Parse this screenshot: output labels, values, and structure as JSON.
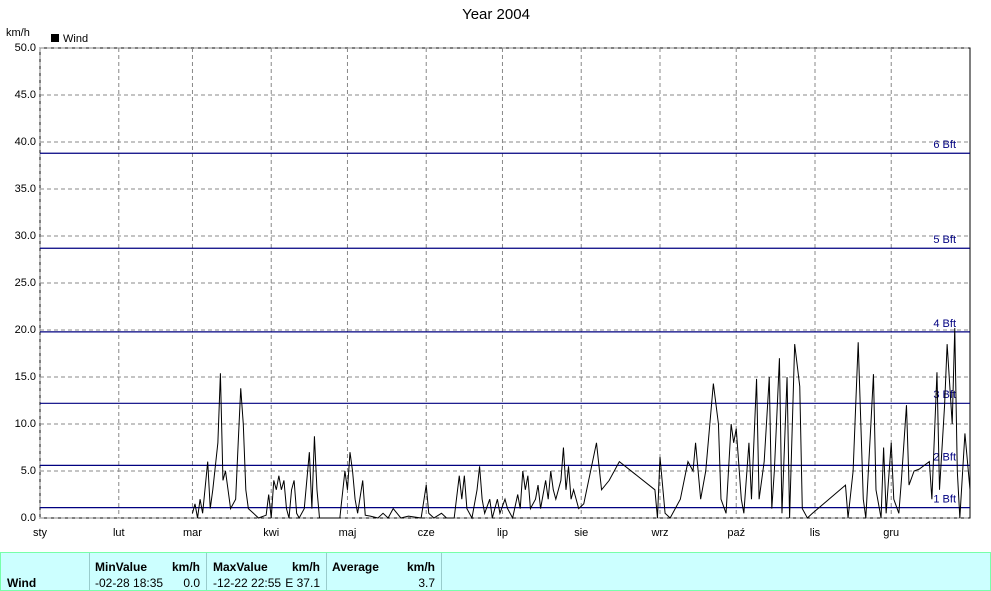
{
  "chart_data": {
    "type": "line",
    "title": "Year 2004",
    "y_label": "km/h",
    "xlim": [
      0,
      366
    ],
    "xticks": [
      {
        "value": 0,
        "label": "sty"
      },
      {
        "value": 31,
        "label": "lut"
      },
      {
        "value": 60,
        "label": "mar"
      },
      {
        "value": 91,
        "label": "kwi"
      },
      {
        "value": 121,
        "label": "maj"
      },
      {
        "value": 152,
        "label": "cze"
      },
      {
        "value": 182,
        "label": "lip"
      },
      {
        "value": 213,
        "label": "sie"
      },
      {
        "value": 244,
        "label": "wrz"
      },
      {
        "value": 274,
        "label": "paź"
      },
      {
        "value": 305,
        "label": "lis"
      },
      {
        "value": 335,
        "label": "gru"
      }
    ],
    "ylim": [
      0,
      50
    ],
    "yticks": [
      {
        "value": 0,
        "label": "0.0"
      },
      {
        "value": 5,
        "label": "5.0"
      },
      {
        "value": 10,
        "label": "10.0"
      },
      {
        "value": 15,
        "label": "15.0"
      },
      {
        "value": 20,
        "label": "20.0"
      },
      {
        "value": 25,
        "label": "25.0"
      },
      {
        "value": 30,
        "label": "30.0"
      },
      {
        "value": 35,
        "label": "35.0"
      },
      {
        "value": 40,
        "label": "40.0"
      },
      {
        "value": 45,
        "label": "45.0"
      },
      {
        "value": 50,
        "label": "50.0"
      }
    ],
    "grid": true,
    "levels": [
      {
        "label": "1 Bft",
        "value": 1.1
      },
      {
        "label": "2 Bft",
        "value": 5.6
      },
      {
        "label": "3 Bft",
        "value": 12.2
      },
      {
        "label": "4 Bft",
        "value": 19.8
      },
      {
        "label": "5 Bft",
        "value": 28.7
      },
      {
        "label": "6 Bft",
        "value": 38.8
      }
    ],
    "level_color": "#000080",
    "x": [
      60,
      61,
      62,
      63,
      64,
      66,
      67,
      68,
      70,
      71,
      72,
      73,
      74,
      75,
      77,
      78,
      79,
      80,
      81,
      82,
      84,
      86,
      89,
      90,
      91,
      92,
      93,
      94,
      95,
      96,
      97,
      98,
      99,
      100,
      101,
      102,
      104,
      106,
      107,
      108,
      109,
      110,
      118,
      120,
      121,
      122,
      123,
      124,
      125,
      127,
      128,
      130,
      133,
      135,
      137,
      139,
      142,
      145,
      150,
      152,
      153,
      155,
      158,
      160,
      163,
      165,
      166,
      167,
      168,
      170,
      172,
      173,
      174,
      175,
      177,
      178,
      180,
      181,
      183,
      184,
      186,
      188,
      189,
      190,
      191,
      192,
      193,
      195,
      196,
      197,
      199,
      200,
      201,
      202,
      203,
      205,
      206,
      207,
      208,
      209,
      210,
      212,
      214,
      219,
      221,
      224,
      228,
      242,
      243,
      244,
      246,
      248,
      252,
      255,
      257,
      258,
      260,
      262,
      265,
      267,
      268,
      270,
      272,
      273,
      274,
      276,
      277,
      279,
      280,
      282,
      283,
      285,
      287,
      288,
      289,
      291,
      292,
      294,
      295,
      297,
      299,
      300,
      302,
      304,
      317,
      318,
      320,
      322,
      324,
      325,
      327,
      328,
      329,
      331,
      332,
      333,
      335,
      336,
      338,
      339,
      341,
      342,
      344,
      346,
      350,
      351,
      353,
      354,
      356,
      357,
      359,
      360,
      361,
      362,
      364,
      365,
      366
    ],
    "series": [
      {
        "name": "Wind",
        "color": "#000000",
        "values": [
          0.5,
          1.5,
          0,
          2,
          0.5,
          6,
          1,
          3,
          8,
          15.4,
          4,
          5,
          3,
          1,
          2,
          8,
          13.8,
          10,
          3,
          1,
          0.5,
          0,
          0.3,
          2.5,
          0,
          4,
          3,
          4.5,
          3,
          4,
          1,
          0,
          3,
          4,
          0.5,
          0,
          1,
          7,
          1,
          8.7,
          3,
          0,
          0,
          5,
          3,
          7,
          5,
          2,
          0.5,
          4,
          0.3,
          0.2,
          0,
          0.5,
          0,
          1,
          0,
          0.2,
          0,
          3.5,
          0.5,
          0,
          0.5,
          0,
          0,
          4.5,
          2,
          4.5,
          1,
          0,
          3,
          5.5,
          2,
          0.5,
          2,
          0,
          2,
          0.5,
          2,
          1,
          0,
          2.5,
          1,
          5,
          3,
          4.5,
          1,
          2,
          3.5,
          1,
          4,
          2,
          5,
          3,
          2,
          4,
          7.5,
          3,
          5.5,
          2,
          3,
          1,
          1.5,
          8,
          3,
          4,
          6,
          3,
          0,
          6.5,
          0.5,
          0,
          2,
          6,
          5,
          8,
          2,
          5,
          14.3,
          10,
          2,
          0.5,
          10,
          8,
          9.5,
          2,
          0.5,
          8,
          2,
          14.8,
          2,
          6,
          15,
          1,
          5,
          17,
          0.5,
          15,
          0,
          18.5,
          14,
          1,
          0,
          0.5,
          3.5,
          0,
          5,
          18.7,
          2,
          0,
          10,
          15.3,
          3,
          0,
          7.5,
          0.5,
          8,
          2,
          0.5,
          4,
          12,
          3.5,
          5,
          5.2,
          6,
          2,
          15.5,
          3,
          12,
          18.5,
          10,
          20.2,
          5,
          0,
          9,
          6,
          3
        ]
      }
    ]
  },
  "summary": {
    "row_label": "Wind",
    "min_header": "MinValue",
    "max_header": "MaxValue",
    "avg_header": "Average",
    "unit": "km/h",
    "min_time": "-02-28 18:35",
    "min_value": "0.0",
    "max_time": "-12-22 22:55",
    "max_value": "E 37.1",
    "avg_value": "3.7"
  }
}
